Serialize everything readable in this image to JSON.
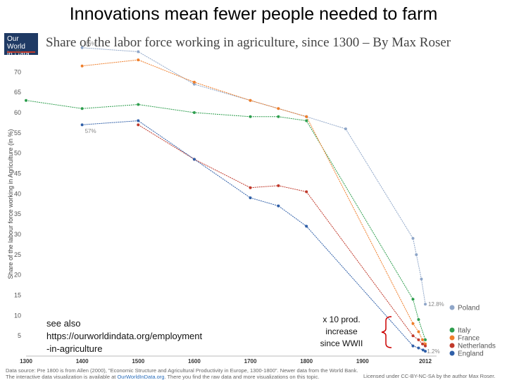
{
  "slide": {
    "title": "Innovations mean fewer people needed to farm"
  },
  "logo": {
    "line1": "Our World",
    "line2": "in Data"
  },
  "colors": {
    "poland": "#8fa6c8",
    "italy": "#2e9e4e",
    "france": "#ef7e2a",
    "netherlands": "#c0392b",
    "england": "#2f5fa8",
    "bracket": "#cc0000"
  },
  "chart_data": {
    "type": "line",
    "title": "Share of the labor force working in agriculture, since 1300 – By Max Roser",
    "ylabel": "Share of the labour force working in Agriculture (in %)",
    "xlabel": "",
    "xlim": [
      1300,
      2012
    ],
    "ylim": [
      0,
      77
    ],
    "x_ticks": [
      1300,
      1400,
      1500,
      1600,
      1700,
      1800,
      1900,
      2012
    ],
    "x_tick_labels": [
      "1300",
      "1400",
      "1500",
      "1600",
      "1700",
      "1800",
      "1900",
      "2012"
    ],
    "y_ticks": [
      5,
      10,
      15,
      20,
      25,
      30,
      35,
      40,
      45,
      50,
      55,
      60,
      65,
      70,
      75
    ],
    "y_tick_labels": [
      "5",
      "10",
      "15",
      "20",
      "25",
      "30",
      "35",
      "40",
      "45",
      "50",
      "55",
      "60",
      "65",
      "70",
      "75"
    ],
    "grid": false,
    "legend_position": "right",
    "series": [
      {
        "name": "Poland",
        "x": [
          1400,
          1500,
          1600,
          1700,
          1800,
          1870,
          1990,
          1996,
          2005,
          2012
        ],
        "y": [
          76,
          75,
          67,
          63,
          59,
          56,
          29,
          25,
          19,
          12.8
        ]
      },
      {
        "name": "Italy",
        "x": [
          1300,
          1400,
          1500,
          1600,
          1700,
          1750,
          1800,
          1990,
          2000,
          2012
        ],
        "y": [
          63,
          61,
          62,
          60,
          59,
          59,
          58,
          14,
          9,
          4
        ]
      },
      {
        "name": "France",
        "x": [
          1400,
          1500,
          1600,
          1700,
          1750,
          1800,
          1990,
          2000,
          2007,
          2012
        ],
        "y": [
          71.5,
          73,
          67.5,
          63,
          61,
          59,
          8,
          6,
          4,
          3
        ]
      },
      {
        "name": "Netherlands",
        "x": [
          1500,
          1600,
          1700,
          1750,
          1800,
          1990,
          2000,
          2007,
          2012
        ],
        "y": [
          57,
          48.5,
          41.5,
          42,
          40.5,
          5,
          4,
          3,
          2.5
        ]
      },
      {
        "name": "England",
        "x": [
          1400,
          1500,
          1600,
          1700,
          1750,
          1800,
          1990,
          2000,
          2008,
          2012
        ],
        "y": [
          57,
          58,
          48.5,
          39,
          37,
          32,
          2.5,
          2,
          1.5,
          1.2
        ]
      }
    ],
    "data_labels": [
      {
        "text": "76%",
        "x": 1405,
        "y": 77
      },
      {
        "text": "57%",
        "x": 1405,
        "y": 55.5
      },
      {
        "text": "12.8%",
        "x": 2017,
        "y": 12.8
      },
      {
        "text": "1.2%",
        "x": 2015,
        "y": 1.2
      }
    ]
  },
  "note": {
    "line1": "see also",
    "line2": "https://ourworldindata.org/employment",
    "line3": "-in-agriculture"
  },
  "annotation": {
    "line1": "x 10 prod.",
    "line2": "increase",
    "line3": "since WWII"
  },
  "footer": {
    "source": "Data source: Pre 1800 is from Allen (2000), \"Economic Structure and Agricultural Productivity in Europe, 1300-1800\". Newer data from the World Bank.",
    "interactive_prefix": "The interactive data visualization is available at",
    "interactive_link": "OurWorldInData.org",
    "interactive_suffix": ". There you find the raw data and more visualizations on this topic.",
    "license_prefix": "Licensed under",
    "license_link": "CC-BY-NC-SA",
    "license_suffix": "by the author Max Roser."
  }
}
